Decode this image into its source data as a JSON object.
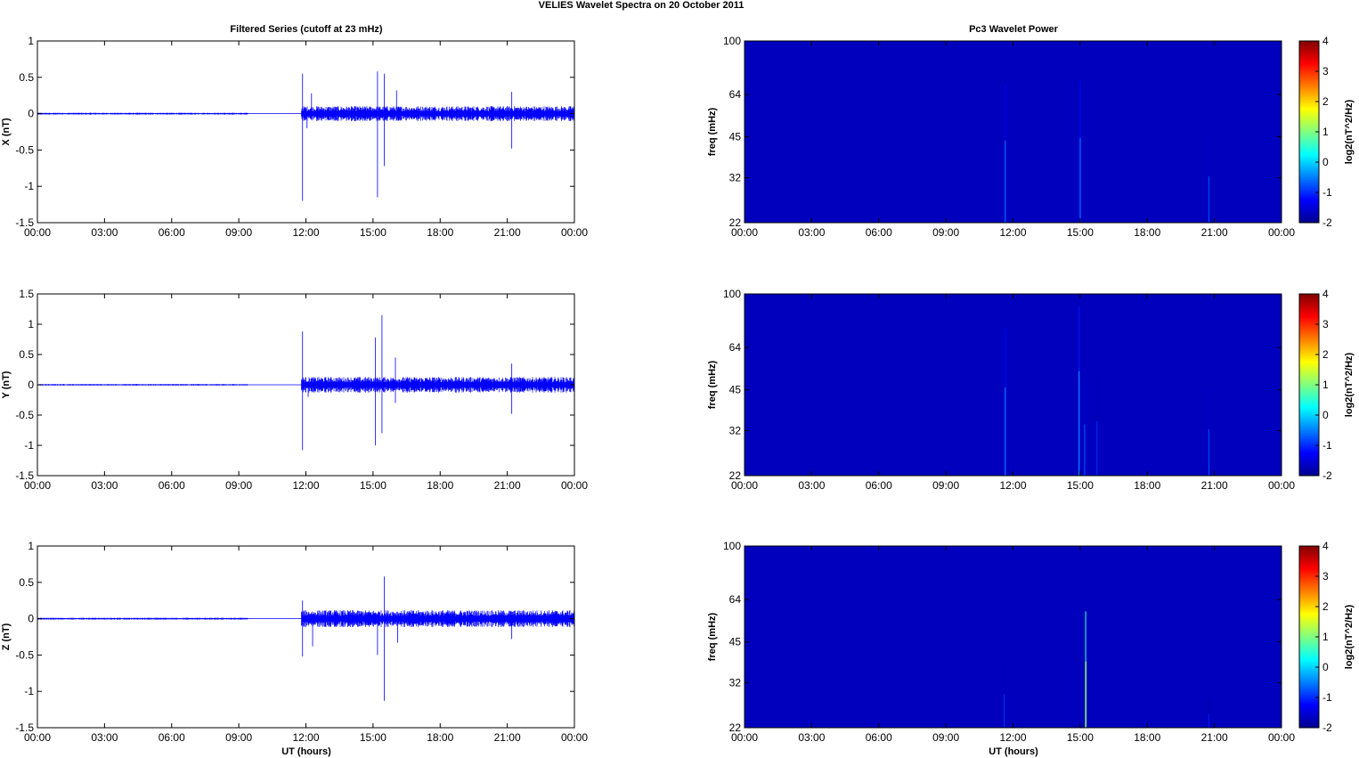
{
  "figure": {
    "title": "VELIES Wavelet Spectra on 20 October   2011",
    "left_column_title": "Filtered Series (cutoff at 23 mHz)",
    "right_column_title": "Pc3 Wavelet Power",
    "xlabel": "UT (hours)"
  },
  "chart_data": [
    {
      "type": "line",
      "panel": "X",
      "ylabel": "X (nT)",
      "x_ticks": [
        "00:00",
        "03:00",
        "06:00",
        "09:00",
        "12:00",
        "15:00",
        "18:00",
        "21:00",
        "00:00"
      ],
      "y_ticks": [
        "1",
        "0.5",
        "0",
        "-0.5",
        "-1",
        "-1.5"
      ],
      "xlim_hours": [
        0,
        24
      ],
      "ylim": [
        -1.5,
        1
      ],
      "color": "#0000ff",
      "noise_segments": [
        {
          "x": [
            0.0,
            9.4
          ],
          "amplitude": 0.01
        },
        {
          "x": [
            11.8,
            24.0
          ],
          "amplitude": 0.08
        }
      ],
      "spikes": [
        {
          "x": 11.85,
          "y": 0.55
        },
        {
          "x": 11.85,
          "y": -1.2
        },
        {
          "x": 12.05,
          "y": -0.2
        },
        {
          "x": 12.25,
          "y": 0.28
        },
        {
          "x": 15.2,
          "y": 0.58
        },
        {
          "x": 15.2,
          "y": -1.15
        },
        {
          "x": 15.5,
          "y": 0.55
        },
        {
          "x": 15.5,
          "y": -0.72
        },
        {
          "x": 16.05,
          "y": 0.32
        },
        {
          "x": 21.2,
          "y": 0.3
        },
        {
          "x": 21.2,
          "y": -0.48
        }
      ]
    },
    {
      "type": "line",
      "panel": "Y",
      "ylabel": "Y (nT)",
      "x_ticks": [
        "00:00",
        "03:00",
        "06:00",
        "09:00",
        "12:00",
        "15:00",
        "18:00",
        "21:00",
        "00:00"
      ],
      "y_ticks": [
        "1.5",
        "1",
        "0.5",
        "0",
        "-0.5",
        "-1",
        "-1.5"
      ],
      "xlim_hours": [
        0,
        24
      ],
      "ylim": [
        -1.5,
        1.5
      ],
      "color": "#0000ff",
      "noise_segments": [
        {
          "x": [
            0.0,
            9.4
          ],
          "amplitude": 0.01
        },
        {
          "x": [
            11.8,
            24.0
          ],
          "amplitude": 0.1
        }
      ],
      "spikes": [
        {
          "x": 11.85,
          "y": 0.88
        },
        {
          "x": 11.85,
          "y": -1.08
        },
        {
          "x": 12.1,
          "y": -0.2
        },
        {
          "x": 15.1,
          "y": 0.78
        },
        {
          "x": 15.1,
          "y": -1.0
        },
        {
          "x": 15.4,
          "y": 1.15
        },
        {
          "x": 15.4,
          "y": -0.8
        },
        {
          "x": 16.0,
          "y": 0.45
        },
        {
          "x": 16.0,
          "y": -0.3
        },
        {
          "x": 21.2,
          "y": 0.35
        },
        {
          "x": 21.2,
          "y": -0.48
        }
      ]
    },
    {
      "type": "line",
      "panel": "Z",
      "ylabel": "Z (nT)",
      "x_ticks": [
        "00:00",
        "03:00",
        "06:00",
        "09:00",
        "12:00",
        "15:00",
        "18:00",
        "21:00",
        "00:00"
      ],
      "y_ticks": [
        "1",
        "0.5",
        "0",
        "-0.5",
        "-1",
        "-1.5"
      ],
      "xlim_hours": [
        0,
        24
      ],
      "ylim": [
        -1.5,
        1
      ],
      "color": "#0000ff",
      "noise_segments": [
        {
          "x": [
            0.0,
            9.4
          ],
          "amplitude": 0.01
        },
        {
          "x": [
            11.8,
            24.0
          ],
          "amplitude": 0.09
        }
      ],
      "spikes": [
        {
          "x": 11.85,
          "y": 0.25
        },
        {
          "x": 11.85,
          "y": -0.52
        },
        {
          "x": 12.3,
          "y": -0.38
        },
        {
          "x": 15.2,
          "y": -0.5
        },
        {
          "x": 15.5,
          "y": 0.58
        },
        {
          "x": 15.5,
          "y": -1.13
        },
        {
          "x": 16.1,
          "y": -0.33
        },
        {
          "x": 21.2,
          "y": -0.28
        }
      ]
    },
    {
      "type": "heatmap",
      "panel": "X",
      "ylabel": "freq (mHz)",
      "colorbar_label": "log2(nT^2/Hz)",
      "x_ticks": [
        "00:00",
        "03:00",
        "06:00",
        "09:00",
        "12:00",
        "15:00",
        "18:00",
        "21:00",
        "00:00"
      ],
      "y_ticks": [
        "100",
        "64",
        "45",
        "32",
        "22"
      ],
      "ylim_mHz": [
        22,
        100
      ],
      "y_scale": "log",
      "colorbar_ticks": [
        "4",
        "3",
        "2",
        "1",
        "0",
        "-1",
        "-2"
      ],
      "clim": [
        -2,
        4
      ],
      "background_value": -2,
      "colormap": "jet",
      "streaks": [
        {
          "x": 11.65,
          "fmax": 70,
          "value": -1.3
        },
        {
          "x": 15.0,
          "fmax": 72,
          "value": -1.2
        },
        {
          "x": 20.75,
          "fmax": 45,
          "value": -1.5
        }
      ]
    },
    {
      "type": "heatmap",
      "panel": "Y",
      "ylabel": "freq (mHz)",
      "colorbar_label": "log2(nT^2/Hz)",
      "x_ticks": [
        "00:00",
        "03:00",
        "06:00",
        "09:00",
        "12:00",
        "15:00",
        "18:00",
        "21:00",
        "00:00"
      ],
      "y_ticks": [
        "100",
        "64",
        "45",
        "32",
        "22"
      ],
      "ylim_mHz": [
        22,
        100
      ],
      "y_scale": "log",
      "colorbar_ticks": [
        "4",
        "3",
        "2",
        "1",
        "0",
        "-1",
        "-2"
      ],
      "clim": [
        -2,
        4
      ],
      "background_value": -2,
      "colormap": "jet",
      "streaks": [
        {
          "x": 11.65,
          "fmax": 75,
          "value": -1.2
        },
        {
          "x": 14.95,
          "fmax": 90,
          "value": -1.1
        },
        {
          "x": 15.2,
          "fmax": 48,
          "value": -1.5
        },
        {
          "x": 15.75,
          "fmax": 50,
          "value": -1.7
        },
        {
          "x": 20.75,
          "fmax": 45,
          "value": -1.5
        }
      ]
    },
    {
      "type": "heatmap",
      "panel": "Z",
      "ylabel": "freq (mHz)",
      "colorbar_label": "log2(nT^2/Hz)",
      "x_ticks": [
        "00:00",
        "03:00",
        "06:00",
        "09:00",
        "12:00",
        "15:00",
        "18:00",
        "21:00",
        "00:00"
      ],
      "y_ticks": [
        "100",
        "64",
        "45",
        "32",
        "22"
      ],
      "ylim_mHz": [
        22,
        100
      ],
      "y_scale": "log",
      "colorbar_ticks": [
        "4",
        "3",
        "2",
        "1",
        "0",
        "-1",
        "-2"
      ],
      "clim": [
        -2,
        4
      ],
      "background_value": -2,
      "colormap": "jet",
      "streaks": [
        {
          "x": 11.6,
          "fmax": 38,
          "value": -1.7
        },
        {
          "x": 15.25,
          "fmax": 58,
          "value": 0.6
        },
        {
          "x": 20.75,
          "fmax": 28,
          "value": -1.8
        }
      ]
    }
  ]
}
